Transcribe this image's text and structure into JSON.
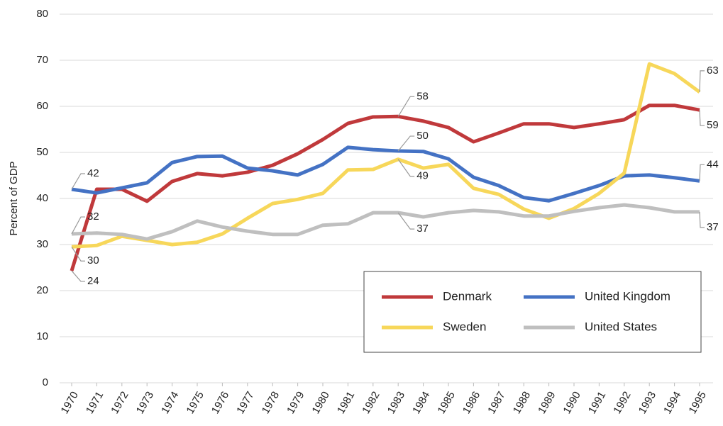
{
  "chart_data": {
    "type": "line",
    "y_label": "Percent of GDP",
    "categories": [
      "1970",
      "1971",
      "1972",
      "1973",
      "1974",
      "1975",
      "1976",
      "1977",
      "1978",
      "1979",
      "1980",
      "1981",
      "1982",
      "1983",
      "1984",
      "1985",
      "1986",
      "1987",
      "1988",
      "1989",
      "1990",
      "1991",
      "1992",
      "1993",
      "1994",
      "1995"
    ],
    "series": [
      {
        "name": "Denmark",
        "color": "#c0393b",
        "values": [
          24.3,
          42,
          42,
          39.4,
          43.7,
          45.4,
          44.9,
          45.7,
          47.2,
          49.7,
          52.8,
          56.3,
          57.7,
          57.8,
          56.8,
          55.4,
          52.3,
          54.2,
          56.2,
          56.2,
          55.4,
          56.2,
          57.1,
          60.2,
          60.2,
          59.2
        ]
      },
      {
        "name": "United Kingdom",
        "color": "#4472c4",
        "values": [
          42,
          41.2,
          42.3,
          43.4,
          47.8,
          49.1,
          49.2,
          46.6,
          46,
          45.1,
          47.4,
          51.1,
          50.6,
          50.3,
          50.2,
          48.6,
          44.6,
          42.8,
          40.2,
          39.5,
          41.1,
          42.8,
          44.9,
          45.1,
          44.5,
          43.8
        ]
      },
      {
        "name": "Sweden",
        "color": "#f7d75a",
        "values": [
          29.5,
          29.8,
          31.8,
          30.9,
          30,
          30.5,
          32.3,
          35.7,
          38.9,
          39.8,
          41.1,
          46.2,
          46.3,
          48.5,
          46.6,
          47.4,
          42.2,
          40.9,
          37.7,
          35.7,
          37.8,
          41.1,
          45.5,
          69.2,
          67.1,
          63.1
        ]
      },
      {
        "name": "United States",
        "color": "#bfbfbf",
        "values": [
          32.3,
          32.5,
          32.2,
          31.2,
          32.8,
          35.1,
          33.8,
          32.9,
          32.2,
          32.2,
          34.2,
          34.5,
          36.9,
          36.9,
          36,
          36.9,
          37.4,
          37.1,
          36.2,
          36.2,
          37.2,
          38,
          38.6,
          38,
          37.1,
          37.1
        ]
      }
    ],
    "annotations": [
      {
        "x": "1970",
        "series": "United Kingdom",
        "label": "42"
      },
      {
        "x": "1970",
        "series": "United States",
        "label": "32"
      },
      {
        "x": "1970",
        "series": "Sweden",
        "label": "30"
      },
      {
        "x": "1970",
        "series": "Denmark",
        "label": "24"
      },
      {
        "x": "1983",
        "series": "Denmark",
        "label": "58"
      },
      {
        "x": "1983",
        "series": "United Kingdom",
        "label": "50"
      },
      {
        "x": "1983",
        "series": "Sweden",
        "label": "49"
      },
      {
        "x": "1983",
        "series": "United States",
        "label": "37"
      },
      {
        "x": "1995",
        "series": "Sweden",
        "label": "63"
      },
      {
        "x": "1995",
        "series": "Denmark",
        "label": "59"
      },
      {
        "x": "1995",
        "series": "United Kingdom",
        "label": "44"
      },
      {
        "x": "1995",
        "series": "United States",
        "label": "37"
      }
    ],
    "ylim": [
      0,
      80
    ],
    "yticks": [
      0,
      10,
      20,
      30,
      40,
      50,
      60,
      70,
      80
    ],
    "grid": true
  }
}
